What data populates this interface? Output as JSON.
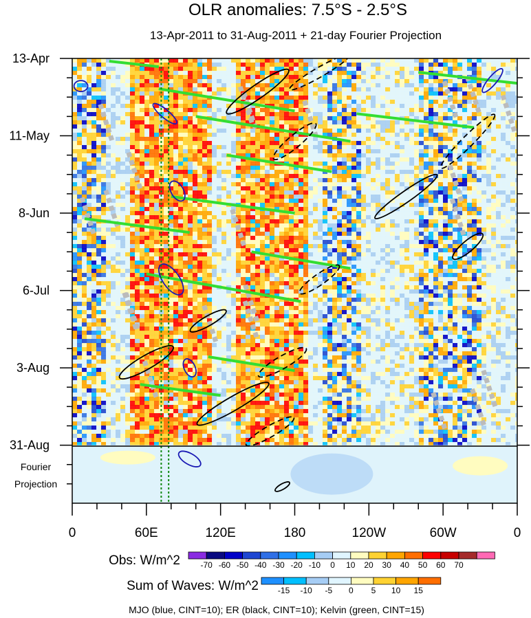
{
  "chart_data": {
    "type": "heatmap",
    "title": "OLR anomalies: 7.5°S - 2.5°S",
    "subtitle": "13-Apr-2011 to 31-Aug-2011 + 21-day Fourier Projection",
    "x_ticks": [
      {
        "lon": 0,
        "label": "0"
      },
      {
        "lon": 60,
        "label": "60E"
      },
      {
        "lon": 120,
        "label": "120E"
      },
      {
        "lon": 180,
        "label": "180"
      },
      {
        "lon": 240,
        "label": "120W"
      },
      {
        "lon": 300,
        "label": "60W"
      },
      {
        "lon": 360,
        "label": "0"
      }
    ],
    "y_ticks": [
      {
        "day": 0,
        "label": "13-Apr"
      },
      {
        "day": 28,
        "label": "11-May"
      },
      {
        "day": 56,
        "label": "8-Jun"
      },
      {
        "day": 84,
        "label": "6-Jul"
      },
      {
        "day": 112,
        "label": "3-Aug"
      },
      {
        "day": 140,
        "label": "31-Aug"
      }
    ],
    "ylim_days": [
      0,
      161
    ],
    "xlim_lon": [
      0,
      360
    ],
    "projection_label": [
      "Fourier",
      "Projection"
    ],
    "dotted_markers_lon": [
      72,
      78
    ],
    "obs_colorbar": {
      "label": "Obs: W/m^2",
      "levels": [
        "-70",
        "-60",
        "-50",
        "-40",
        "-30",
        "-20",
        "-10",
        "0",
        "10",
        "20",
        "30",
        "40",
        "50",
        "60",
        "70"
      ],
      "colors": [
        "#8a2be2",
        "#0a0a80",
        "#0000c8",
        "#1e46d2",
        "#2f6fe6",
        "#1e90ff",
        "#00bfff",
        "#a6cdf5",
        "#e0f5ff",
        "#fffcc0",
        "#ffd232",
        "#ffa500",
        "#ff6e00",
        "#ff0000",
        "#c80000",
        "#a52a2a",
        "#ff69b4"
      ]
    },
    "wave_colorbar": {
      "label": "Sum of Waves: W/m^2",
      "levels": [
        "-15",
        "-10",
        "-5",
        "0",
        "5",
        "10",
        "15"
      ],
      "colors": [
        "#1e90ff",
        "#00bfff",
        "#a6cdf5",
        "#e0f5ff",
        "#fffcc0",
        "#ffd232",
        "#ffa500",
        "#ff6e00"
      ]
    },
    "vertical_bands": [
      {
        "lon_from": 0,
        "lon_to": 25,
        "type": "mixed"
      },
      {
        "lon_from": 45,
        "lon_to": 110,
        "type": "positive"
      },
      {
        "lon_from": 130,
        "lon_to": 190,
        "type": "positive"
      },
      {
        "lon_from": 200,
        "lon_to": 230,
        "type": "mixed"
      },
      {
        "lon_from": 280,
        "lon_to": 330,
        "type": "mixed"
      }
    ],
    "wave_features": {
      "kelvin_segments": [
        {
          "lon1": 30,
          "day1": 1,
          "lon2": 70,
          "day2": 3
        },
        {
          "lon1": 70,
          "day1": 11,
          "lon2": 180,
          "day2": 19
        },
        {
          "lon1": 100,
          "day1": 21,
          "lon2": 225,
          "day2": 30
        },
        {
          "lon1": 125,
          "day1": 35,
          "lon2": 210,
          "day2": 41
        },
        {
          "lon1": 80,
          "day1": 50,
          "lon2": 180,
          "day2": 56
        },
        {
          "lon1": 10,
          "day1": 58,
          "lon2": 95,
          "day2": 63
        },
        {
          "lon1": 145,
          "day1": 70,
          "lon2": 225,
          "day2": 76
        },
        {
          "lon1": 60,
          "day1": 78,
          "lon2": 185,
          "day2": 88
        },
        {
          "lon1": 110,
          "day1": 108,
          "lon2": 180,
          "day2": 113
        },
        {
          "lon1": 55,
          "day1": 118,
          "lon2": 120,
          "day2": 122
        },
        {
          "lon1": 230,
          "day1": 20,
          "lon2": 325,
          "day2": 25
        },
        {
          "lon1": 280,
          "day1": 5,
          "lon2": 360,
          "day2": 9
        }
      ],
      "mjo_ellipses": [
        {
          "lon": 7,
          "day": 10,
          "rx": 10,
          "ry": 8,
          "rot": 0
        },
        {
          "lon": 75,
          "day": 20,
          "rx": 22,
          "ry": 6,
          "rot": 40
        },
        {
          "lon": 85,
          "day": 48,
          "rx": 16,
          "ry": 9,
          "rot": 60
        },
        {
          "lon": 80,
          "day": 80,
          "rx": 26,
          "ry": 12,
          "rot": 55
        },
        {
          "lon": 95,
          "day": 112,
          "rx": 14,
          "ry": 8,
          "rot": 65
        },
        {
          "lon": 95,
          "day": 145,
          "rx": 18,
          "ry": 8,
          "rot": 30
        },
        {
          "lon": 340,
          "day": 8,
          "rx": 22,
          "ry": 6,
          "rot": -50
        }
      ],
      "er_ellipses": [
        {
          "lon": 150,
          "day": 12,
          "rx": 55,
          "ry": 10,
          "rot": -35,
          "dashed": false
        },
        {
          "lon": 200,
          "day": 5,
          "rx": 50,
          "ry": 7,
          "rot": -30,
          "dashed": true
        },
        {
          "lon": 180,
          "day": 30,
          "rx": 40,
          "ry": 9,
          "rot": -40,
          "dashed": true
        },
        {
          "lon": 270,
          "day": 50,
          "rx": 55,
          "ry": 8,
          "rot": -35,
          "dashed": false
        },
        {
          "lon": 320,
          "day": 30,
          "rx": 55,
          "ry": 8,
          "rot": -45,
          "dashed": true
        },
        {
          "lon": 60,
          "day": 110,
          "rx": 45,
          "ry": 10,
          "rot": -30,
          "dashed": false
        },
        {
          "lon": 170,
          "day": 110,
          "rx": 40,
          "ry": 9,
          "rot": -30,
          "dashed": true
        },
        {
          "lon": 110,
          "day": 95,
          "rx": 30,
          "ry": 7,
          "rot": -30,
          "dashed": false
        },
        {
          "lon": 200,
          "day": 80,
          "rx": 35,
          "ry": 8,
          "rot": -35,
          "dashed": true
        },
        {
          "lon": 320,
          "day": 68,
          "rx": 28,
          "ry": 8,
          "rot": -40,
          "dashed": false
        },
        {
          "lon": 130,
          "day": 125,
          "rx": 60,
          "ry": 10,
          "rot": -30,
          "dashed": false
        },
        {
          "lon": 160,
          "day": 135,
          "rx": 40,
          "ry": 8,
          "rot": -30,
          "dashed": true
        },
        {
          "lon": 170,
          "day": 155,
          "rx": 12,
          "ry": 4,
          "rot": -30,
          "dashed": false
        }
      ]
    },
    "footer": "MJO (blue, CINT=10); ER (black, CINT=10); Kelvin (green, CINT=15)"
  }
}
